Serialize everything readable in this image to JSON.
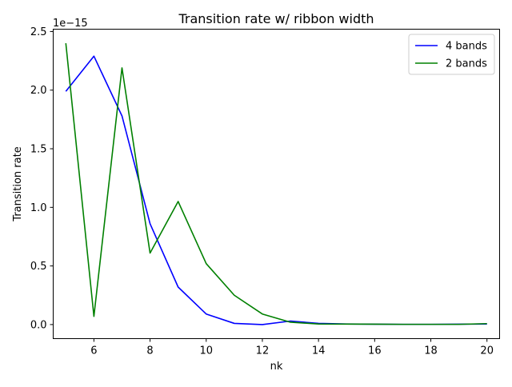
{
  "chart_data": {
    "type": "line",
    "title": "Transition rate w/ ribbon width",
    "xlabel": "nk",
    "ylabel": "Transition rate",
    "y_scale_label": "1e−15",
    "x": [
      5,
      6,
      7,
      8,
      9,
      10,
      11,
      12,
      13,
      14,
      15,
      16,
      17,
      18,
      19,
      20
    ],
    "xlim": [
      4.55,
      20.45
    ],
    "ylim": [
      -0.12,
      2.52
    ],
    "x_ticks": [
      6,
      8,
      10,
      12,
      14,
      16,
      18,
      20
    ],
    "x_tick_labels": [
      "6",
      "8",
      "10",
      "12",
      "14",
      "16",
      "18",
      "20"
    ],
    "y_ticks": [
      0.0,
      0.5,
      1.0,
      1.5,
      2.0,
      2.5
    ],
    "y_tick_labels": [
      "0.0",
      "0.5",
      "1.0",
      "1.5",
      "2.0",
      "2.5"
    ],
    "grid": false,
    "legend_position": "top-right",
    "series": [
      {
        "name": "4 bands",
        "color": "#0000ff",
        "values": [
          1.99,
          2.29,
          1.78,
          0.86,
          0.32,
          0.09,
          0.01,
          0.0,
          0.03,
          0.01,
          0.005,
          0.003,
          0.002,
          0.002,
          0.003,
          0.005
        ]
      },
      {
        "name": "2 bands",
        "color": "#008000",
        "values": [
          2.4,
          0.07,
          2.19,
          0.61,
          1.05,
          0.52,
          0.25,
          0.09,
          0.02,
          0.005,
          0.004,
          0.003,
          0.002,
          0.002,
          0.002,
          0.008
        ]
      }
    ]
  }
}
